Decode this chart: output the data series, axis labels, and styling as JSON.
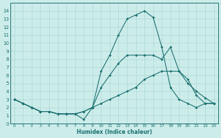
{
  "xlabel": "Humidex (Indice chaleur)",
  "bg_color": "#ccecea",
  "line_color": "#1a7070",
  "grid_color": "#aad8d4",
  "xlim": [
    -0.5,
    23.5
  ],
  "ylim": [
    0,
    15
  ],
  "yticks": [
    0,
    1,
    2,
    3,
    4,
    5,
    6,
    7,
    8,
    9,
    10,
    11,
    12,
    13,
    14
  ],
  "xticks": [
    0,
    1,
    2,
    3,
    4,
    5,
    6,
    7,
    8,
    9,
    10,
    11,
    12,
    13,
    14,
    15,
    16,
    17,
    18,
    19,
    20,
    21,
    22,
    23
  ],
  "line1_x": [
    0,
    1,
    2,
    3,
    4,
    5,
    6,
    7,
    8,
    9,
    10,
    11,
    12,
    13,
    14,
    15,
    16,
    17,
    18,
    19,
    20,
    21,
    22,
    23
  ],
  "line1_y": [
    3.0,
    2.5,
    2.0,
    1.5,
    1.5,
    1.2,
    1.2,
    1.2,
    0.5,
    2.0,
    6.5,
    8.5,
    11.0,
    13.0,
    13.5,
    14.0,
    13.2,
    9.5,
    4.5,
    3.0,
    2.5,
    2.0,
    2.5,
    2.5
  ],
  "line2_x": [
    0,
    1,
    2,
    3,
    4,
    5,
    6,
    7,
    8,
    9,
    10,
    11,
    12,
    13,
    14,
    15,
    16,
    17,
    18,
    19,
    20,
    21,
    22,
    23
  ],
  "line2_y": [
    3.0,
    2.5,
    2.0,
    1.5,
    1.5,
    1.2,
    1.2,
    1.2,
    1.5,
    2.0,
    4.5,
    6.0,
    7.5,
    8.5,
    8.5,
    8.5,
    8.5,
    8.0,
    9.5,
    6.5,
    5.0,
    4.0,
    3.2,
    2.5
  ],
  "line3_x": [
    0,
    1,
    2,
    3,
    4,
    5,
    6,
    7,
    8,
    9,
    10,
    11,
    12,
    13,
    14,
    15,
    16,
    17,
    18,
    19,
    20,
    21,
    22,
    23
  ],
  "line3_y": [
    3.0,
    2.5,
    2.0,
    1.5,
    1.5,
    1.2,
    1.2,
    1.2,
    1.5,
    2.0,
    2.5,
    3.0,
    3.5,
    4.0,
    4.5,
    5.5,
    6.0,
    6.5,
    6.5,
    6.5,
    5.5,
    3.5,
    2.5,
    2.5
  ]
}
